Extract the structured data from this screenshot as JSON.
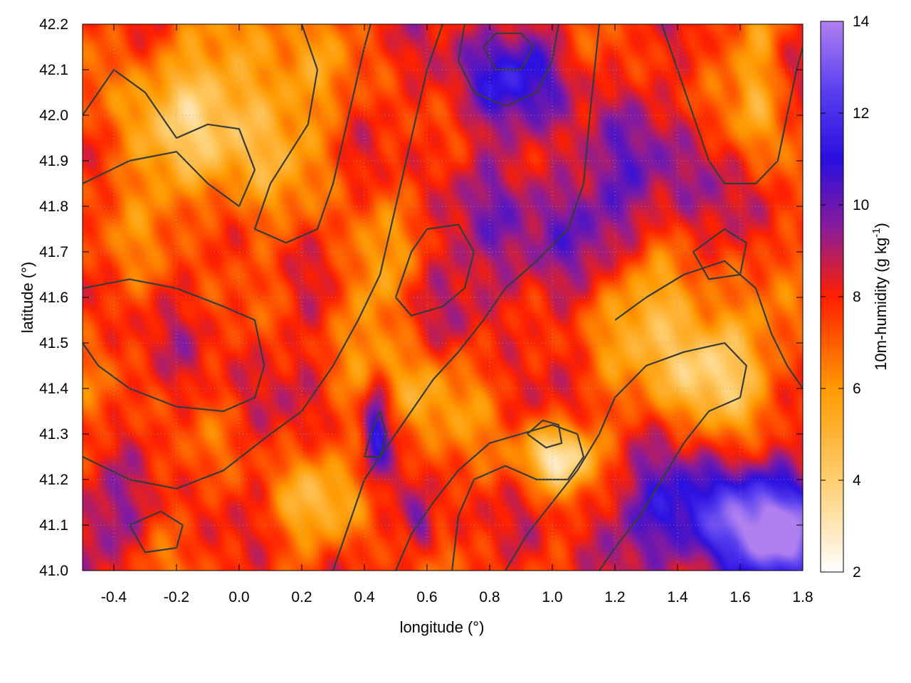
{
  "chart_data": {
    "type": "heatmap",
    "title": "",
    "xlabel": "longitude (°)",
    "ylabel": "latitude (°)",
    "colorbar_label": "10m-humidity (g kg-1)",
    "colorbar_label_parts": {
      "main": "10m-humidity (g kg",
      "sup": "-1",
      "close": ")"
    },
    "xlim": [
      -0.5,
      1.8
    ],
    "ylim": [
      41.0,
      42.2
    ],
    "clim": [
      2,
      14
    ],
    "x_ticks": [
      {
        "value": -0.4,
        "label": "-0.4"
      },
      {
        "value": -0.2,
        "label": "-0.2"
      },
      {
        "value": 0.0,
        "label": "0.0"
      },
      {
        "value": 0.2,
        "label": "0.2"
      },
      {
        "value": 0.4,
        "label": "0.4"
      },
      {
        "value": 0.6,
        "label": "0.6"
      },
      {
        "value": 0.8,
        "label": "0.8"
      },
      {
        "value": 1.0,
        "label": "1.0"
      },
      {
        "value": 1.2,
        "label": "1.2"
      },
      {
        "value": 1.4,
        "label": "1.4"
      },
      {
        "value": 1.6,
        "label": "1.6"
      },
      {
        "value": 1.8,
        "label": "1.8"
      }
    ],
    "y_ticks": [
      {
        "value": 41.0,
        "label": "41.0"
      },
      {
        "value": 41.1,
        "label": "41.1"
      },
      {
        "value": 41.2,
        "label": "41.2"
      },
      {
        "value": 41.3,
        "label": "41.3"
      },
      {
        "value": 41.4,
        "label": "41.4"
      },
      {
        "value": 41.5,
        "label": "41.5"
      },
      {
        "value": 41.6,
        "label": "41.6"
      },
      {
        "value": 41.7,
        "label": "41.7"
      },
      {
        "value": 41.8,
        "label": "41.8"
      },
      {
        "value": 41.9,
        "label": "41.9"
      },
      {
        "value": 42.0,
        "label": "42.0"
      },
      {
        "value": 42.1,
        "label": "42.1"
      },
      {
        "value": 42.2,
        "label": "42.2"
      }
    ],
    "colorbar_ticks": [
      {
        "value": 2,
        "label": "2"
      },
      {
        "value": 4,
        "label": "4"
      },
      {
        "value": 6,
        "label": "6"
      },
      {
        "value": 8,
        "label": "8"
      },
      {
        "value": 10,
        "label": "10"
      },
      {
        "value": 12,
        "label": "12"
      },
      {
        "value": 14,
        "label": "14"
      }
    ],
    "grid": true,
    "colormap": [
      {
        "value": 2,
        "color": "#ffffff"
      },
      {
        "value": 4,
        "color": "#ffcf70"
      },
      {
        "value": 6,
        "color": "#ff9a00"
      },
      {
        "value": 8,
        "color": "#ff2000"
      },
      {
        "value": 9.5,
        "color": "#8a1c9a"
      },
      {
        "value": 11,
        "color": "#2a10e0"
      },
      {
        "value": 12.5,
        "color": "#5a40f0"
      },
      {
        "value": 14,
        "color": "#b080f0"
      }
    ],
    "features": [
      {
        "lon": -0.15,
        "lat": 41.95,
        "amp": -2.2,
        "sx": 0.3,
        "sy": 0.2
      },
      {
        "lon": 0.05,
        "lat": 42.05,
        "amp": -1.8,
        "sx": 0.25,
        "sy": 0.18
      },
      {
        "lon": 0.85,
        "lat": 42.08,
        "amp": 3.0,
        "sx": 0.22,
        "sy": 0.12
      },
      {
        "lon": 1.0,
        "lat": 41.78,
        "amp": 1.8,
        "sx": 0.3,
        "sy": 0.15
      },
      {
        "lon": 1.35,
        "lat": 41.85,
        "amp": 1.5,
        "sx": 0.3,
        "sy": 0.2
      },
      {
        "lon": 0.8,
        "lat": 41.6,
        "amp": 1.2,
        "sx": 0.25,
        "sy": 0.12
      },
      {
        "lon": 1.5,
        "lat": 41.45,
        "amp": -4.0,
        "sx": 0.18,
        "sy": 0.12
      },
      {
        "lon": 1.3,
        "lat": 41.6,
        "amp": -2.5,
        "sx": 0.2,
        "sy": 0.12
      },
      {
        "lon": 1.02,
        "lat": 41.25,
        "amp": -4.5,
        "sx": 0.12,
        "sy": 0.07
      },
      {
        "lon": 1.65,
        "lat": 42.05,
        "amp": -3.0,
        "sx": 0.07,
        "sy": 0.2
      },
      {
        "lon": 0.42,
        "lat": 41.62,
        "amp": -2.0,
        "sx": 0.1,
        "sy": 0.15
      },
      {
        "lon": 0.6,
        "lat": 41.4,
        "amp": -2.0,
        "sx": 0.15,
        "sy": 0.12
      },
      {
        "lon": 0.25,
        "lat": 41.15,
        "amp": -2.0,
        "sx": 0.15,
        "sy": 0.1
      },
      {
        "lon": 0.44,
        "lat": 41.32,
        "amp": 3.5,
        "sx": 0.04,
        "sy": 0.1
      },
      {
        "lon": 0.58,
        "lat": 41.1,
        "amp": 3.0,
        "sx": 0.05,
        "sy": 0.07
      },
      {
        "lon": 1.55,
        "lat": 41.12,
        "amp": 4.5,
        "sx": 0.35,
        "sy": 0.12
      },
      {
        "lon": 1.75,
        "lat": 41.05,
        "amp": 4.0,
        "sx": 0.2,
        "sy": 0.1
      },
      {
        "lon": -0.45,
        "lat": 41.1,
        "amp": 1.8,
        "sx": 0.15,
        "sy": 0.1
      },
      {
        "lon": 0.0,
        "lat": 41.5,
        "amp": 0.5,
        "sx": 0.3,
        "sy": 0.2
      }
    ],
    "contours": [
      {
        "value": "",
        "points": [
          [
            -0.5,
            42.0
          ],
          [
            -0.4,
            42.1
          ],
          [
            -0.3,
            42.05
          ],
          [
            -0.2,
            41.95
          ],
          [
            -0.1,
            41.98
          ],
          [
            0.0,
            41.97
          ],
          [
            0.05,
            41.88
          ],
          [
            0.0,
            41.8
          ],
          [
            -0.1,
            41.85
          ],
          [
            -0.2,
            41.92
          ],
          [
            -0.35,
            41.9
          ],
          [
            -0.5,
            41.85
          ]
        ]
      },
      {
        "value": "",
        "points": [
          [
            0.2,
            42.2
          ],
          [
            0.25,
            42.1
          ],
          [
            0.22,
            41.98
          ],
          [
            0.1,
            41.85
          ],
          [
            0.05,
            41.75
          ],
          [
            0.15,
            41.72
          ],
          [
            0.25,
            41.75
          ],
          [
            0.3,
            41.85
          ],
          [
            0.35,
            42.0
          ],
          [
            0.4,
            42.15
          ],
          [
            0.42,
            42.2
          ]
        ]
      },
      {
        "value": "",
        "points": [
          [
            -0.5,
            41.62
          ],
          [
            -0.35,
            41.64
          ],
          [
            -0.2,
            41.62
          ],
          [
            -0.05,
            41.58
          ],
          [
            0.05,
            41.55
          ],
          [
            0.08,
            41.45
          ],
          [
            0.05,
            41.38
          ],
          [
            -0.05,
            41.35
          ],
          [
            -0.2,
            41.36
          ],
          [
            -0.35,
            41.4
          ],
          [
            -0.45,
            41.45
          ],
          [
            -0.5,
            41.5
          ]
        ]
      },
      {
        "value": "",
        "points": [
          [
            -0.5,
            41.25
          ],
          [
            -0.35,
            41.2
          ],
          [
            -0.2,
            41.18
          ],
          [
            -0.05,
            41.22
          ],
          [
            0.1,
            41.3
          ],
          [
            0.2,
            41.35
          ],
          [
            0.3,
            41.45
          ],
          [
            0.38,
            41.55
          ],
          [
            0.45,
            41.65
          ],
          [
            0.5,
            41.8
          ],
          [
            0.55,
            41.95
          ],
          [
            0.6,
            42.1
          ],
          [
            0.65,
            42.2
          ]
        ]
      },
      {
        "value": "",
        "points": [
          [
            0.3,
            41.0
          ],
          [
            0.35,
            41.1
          ],
          [
            0.4,
            41.2
          ],
          [
            0.48,
            41.28
          ],
          [
            0.55,
            41.35
          ],
          [
            0.62,
            41.42
          ],
          [
            0.7,
            41.48
          ],
          [
            0.78,
            41.55
          ],
          [
            0.85,
            41.62
          ],
          [
            0.95,
            41.68
          ],
          [
            1.05,
            41.75
          ],
          [
            1.1,
            41.85
          ],
          [
            1.12,
            42.0
          ],
          [
            1.15,
            42.2
          ]
        ]
      },
      {
        "value": "",
        "points": [
          [
            0.5,
            41.0
          ],
          [
            0.55,
            41.08
          ],
          [
            0.62,
            41.15
          ],
          [
            0.7,
            41.22
          ],
          [
            0.8,
            41.28
          ],
          [
            0.9,
            41.3
          ],
          [
            1.0,
            41.32
          ],
          [
            1.08,
            41.3
          ],
          [
            1.1,
            41.25
          ],
          [
            1.05,
            41.2
          ],
          [
            0.95,
            41.2
          ],
          [
            0.85,
            41.23
          ],
          [
            0.75,
            41.2
          ],
          [
            0.7,
            41.12
          ],
          [
            0.68,
            41.0
          ]
        ]
      },
      {
        "value": "",
        "points": [
          [
            0.85,
            41.0
          ],
          [
            0.92,
            41.08
          ],
          [
            1.0,
            41.15
          ],
          [
            1.08,
            41.22
          ],
          [
            1.15,
            41.3
          ],
          [
            1.2,
            41.38
          ],
          [
            1.3,
            41.45
          ],
          [
            1.42,
            41.48
          ],
          [
            1.55,
            41.5
          ],
          [
            1.62,
            41.45
          ],
          [
            1.6,
            41.38
          ],
          [
            1.5,
            41.35
          ],
          [
            1.42,
            41.28
          ],
          [
            1.35,
            41.2
          ],
          [
            1.28,
            41.12
          ],
          [
            1.2,
            41.05
          ],
          [
            1.15,
            41.0
          ]
        ]
      },
      {
        "value": "",
        "points": [
          [
            1.2,
            41.55
          ],
          [
            1.3,
            41.6
          ],
          [
            1.42,
            41.65
          ],
          [
            1.55,
            41.68
          ],
          [
            1.65,
            41.62
          ],
          [
            1.7,
            41.52
          ],
          [
            1.75,
            41.45
          ],
          [
            1.8,
            41.4
          ]
        ]
      },
      {
        "value": "",
        "points": [
          [
            1.35,
            42.2
          ],
          [
            1.4,
            42.1
          ],
          [
            1.45,
            42.0
          ],
          [
            1.5,
            41.9
          ],
          [
            1.55,
            41.85
          ],
          [
            1.65,
            41.85
          ],
          [
            1.72,
            41.9
          ],
          [
            1.75,
            42.0
          ],
          [
            1.78,
            42.1
          ],
          [
            1.8,
            42.15
          ]
        ]
      },
      {
        "value": "",
        "points": [
          [
            0.72,
            42.2
          ],
          [
            0.7,
            42.12
          ],
          [
            0.75,
            42.05
          ],
          [
            0.85,
            42.02
          ],
          [
            0.95,
            42.05
          ],
          [
            1.0,
            42.12
          ],
          [
            1.02,
            42.2
          ]
        ]
      },
      {
        "value": "",
        "points": [
          [
            0.78,
            42.15
          ],
          [
            0.82,
            42.1
          ],
          [
            0.9,
            42.1
          ],
          [
            0.94,
            42.15
          ],
          [
            0.9,
            42.18
          ],
          [
            0.82,
            42.18
          ],
          [
            0.78,
            42.15
          ]
        ]
      },
      {
        "value": "",
        "points": [
          [
            0.5,
            41.6
          ],
          [
            0.55,
            41.7
          ],
          [
            0.6,
            41.75
          ],
          [
            0.7,
            41.76
          ],
          [
            0.75,
            41.7
          ],
          [
            0.72,
            41.62
          ],
          [
            0.65,
            41.58
          ],
          [
            0.55,
            41.56
          ],
          [
            0.5,
            41.6
          ]
        ]
      },
      {
        "value": "",
        "points": [
          [
            0.4,
            41.25
          ],
          [
            0.42,
            41.3
          ],
          [
            0.45,
            41.35
          ],
          [
            0.47,
            41.3
          ],
          [
            0.45,
            41.25
          ],
          [
            0.4,
            41.25
          ]
        ]
      },
      {
        "value": "",
        "points": [
          [
            0.92,
            41.3
          ],
          [
            0.97,
            41.33
          ],
          [
            1.02,
            41.32
          ],
          [
            1.03,
            41.28
          ],
          [
            0.98,
            41.27
          ],
          [
            0.92,
            41.3
          ]
        ]
      },
      {
        "value": "",
        "points": [
          [
            -0.35,
            41.1
          ],
          [
            -0.25,
            41.13
          ],
          [
            -0.18,
            41.1
          ],
          [
            -0.2,
            41.05
          ],
          [
            -0.3,
            41.04
          ],
          [
            -0.35,
            41.1
          ]
        ]
      },
      {
        "value": "",
        "points": [
          [
            1.45,
            41.7
          ],
          [
            1.55,
            41.75
          ],
          [
            1.62,
            41.72
          ],
          [
            1.6,
            41.65
          ],
          [
            1.5,
            41.64
          ],
          [
            1.45,
            41.7
          ]
        ]
      }
    ]
  }
}
